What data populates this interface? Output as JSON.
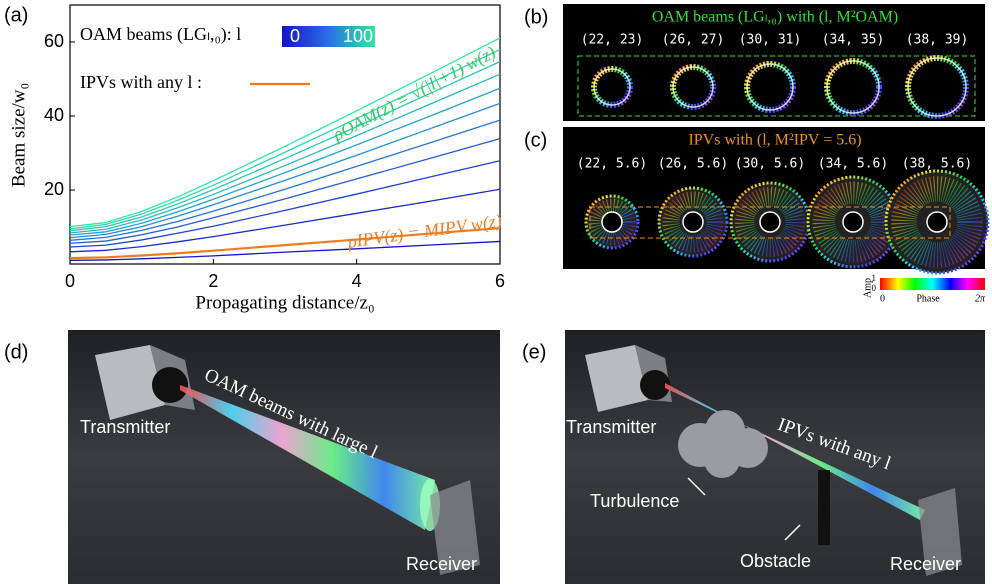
{
  "chart_data": {
    "type": "line",
    "panel_label": "(a)",
    "xlabel": "Propagating distance/z₀",
    "ylabel": "Beam size/w₀",
    "x": [
      0,
      0.5,
      1,
      1.5,
      2,
      3,
      4,
      5,
      6
    ],
    "xlim": [
      0,
      6
    ],
    "xticks": [
      0,
      2,
      4,
      6
    ],
    "ylim": [
      0,
      70
    ],
    "yticks": [
      20,
      40,
      60
    ],
    "legend_title": "OAM beams (LGₗ,₀): l",
    "colorbar": {
      "ticks": [
        0,
        100
      ],
      "colors": [
        "#1414c8",
        "#2a6ee8",
        "#2ee8a0"
      ]
    },
    "series": [
      {
        "color": "#1414c8",
        "values": [
          1,
          1.1,
          1.4,
          1.8,
          2.2,
          3.2,
          4.1,
          5.1,
          6.1
        ]
      },
      {
        "color": "#1a2ccc",
        "values": [
          3.3,
          3.7,
          4.7,
          6.0,
          7.4,
          10.5,
          13.7,
          16.9,
          20.2
        ]
      },
      {
        "color": "#1f44d2",
        "values": [
          4.6,
          5.1,
          6.5,
          8.3,
          10.2,
          14.5,
          18.9,
          23.4,
          27.9
        ]
      },
      {
        "color": "#245cd8",
        "values": [
          5.6,
          6.2,
          7.9,
          10.0,
          12.5,
          17.6,
          23.0,
          28.4,
          33.9
        ]
      },
      {
        "color": "#2674dc",
        "values": [
          6.4,
          7.2,
          9.1,
          11.5,
          14.3,
          20.2,
          26.4,
          32.6,
          38.9
        ]
      },
      {
        "color": "#268cd8",
        "values": [
          7.1,
          8.0,
          10.1,
          12.9,
          16.0,
          22.6,
          29.4,
          36.4,
          43.4
        ]
      },
      {
        "color": "#26a4d0",
        "values": [
          7.8,
          8.7,
          11.0,
          14.1,
          17.5,
          24.7,
          32.2,
          39.8,
          47.5
        ]
      },
      {
        "color": "#28b8c4",
        "values": [
          8.4,
          9.4,
          11.9,
          15.2,
          18.8,
          26.6,
          34.7,
          43.0,
          51.3
        ]
      },
      {
        "color": "#2ac8b8",
        "values": [
          9.0,
          10.1,
          12.7,
          16.2,
          20.1,
          28.5,
          37.1,
          45.9,
          54.7
        ]
      },
      {
        "color": "#2cd8aa",
        "values": [
          9.5,
          10.7,
          13.5,
          17.2,
          21.3,
          30.2,
          39.3,
          48.6,
          58.0
        ]
      },
      {
        "color": "#2ee8a0",
        "values": [
          10.1,
          11.2,
          14.2,
          18.1,
          22.5,
          31.8,
          41.4,
          51.2,
          61.1
        ]
      },
      {
        "name": "IPVs with any l :",
        "color": "#f07c20",
        "values": [
          1.6,
          1.8,
          2.3,
          2.9,
          3.6,
          5.1,
          6.6,
          8.2,
          9.7
        ]
      }
    ],
    "annotations": [
      {
        "text": "ρOAM(z) = √(|l|+1) w(z)",
        "color": "#2ecc60"
      },
      {
        "text": "ρIPV(z) = MIPV w(z)",
        "color": "#f07c20"
      }
    ]
  },
  "panel_b": {
    "label": "(b)",
    "title": "OAM beams (LGₗ,₀) with (l, M²OAM)",
    "pairs": [
      "(22, 23)",
      "(26, 27)",
      "(30, 31)",
      "(34, 35)",
      "(38, 39)"
    ]
  },
  "panel_c": {
    "label": "(c)",
    "title": "IPVs with (l, M²IPV = 5.6)",
    "pairs": [
      "(22, 5.6)",
      "(26, 5.6)",
      "(30, 5.6)",
      "(34, 5.6)",
      "(38, 5.6)"
    ]
  },
  "phase_bar": {
    "amp_label": "Amp",
    "amp_max": "1",
    "amp_min": "0",
    "phase_min": "0",
    "phase_label": "Phase",
    "phase_max": "2π"
  },
  "panel_d": {
    "label": "(d)",
    "transmitter": "Transmitter",
    "beam": "OAM beams with large l",
    "receiver": "Receiver"
  },
  "panel_e": {
    "label": "(e)",
    "transmitter": "Transmitter",
    "beam": "IPVs with any l",
    "turbulence": "Turbulence",
    "obstacle": "Obstacle",
    "receiver": "Receiver"
  }
}
